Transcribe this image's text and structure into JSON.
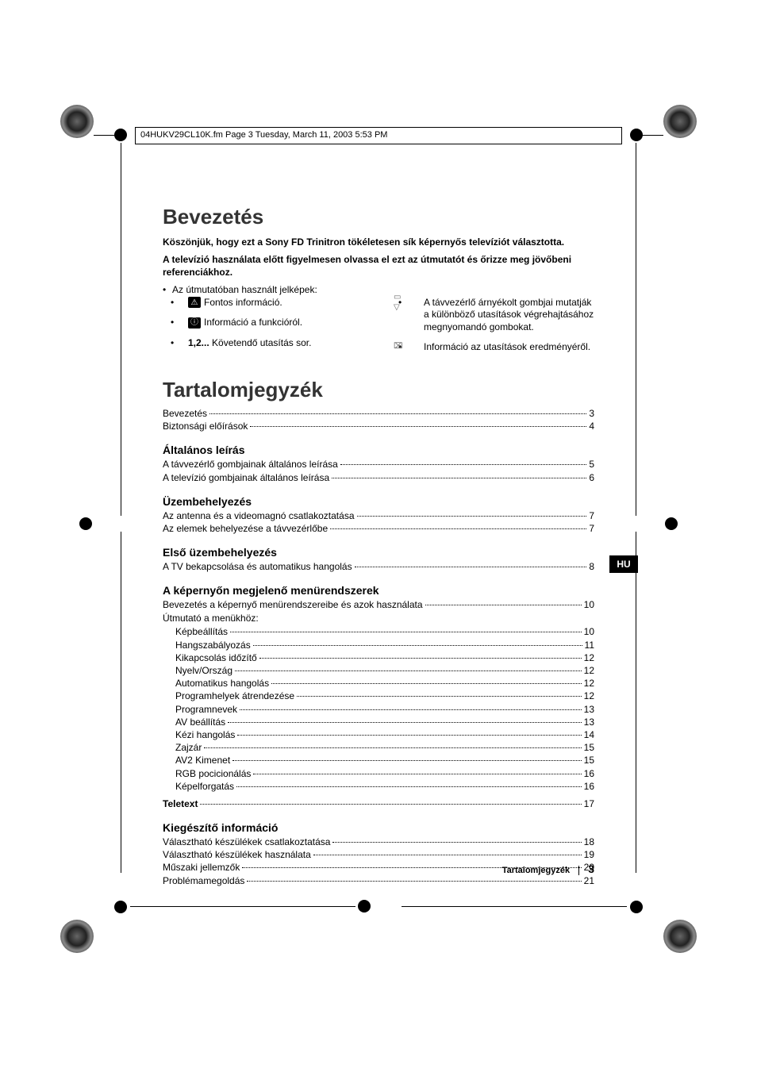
{
  "frameHeader": "04HUKV29CL10K.fm  Page 3  Tuesday, March 11, 2003  5:53 PM",
  "langTab": "HU",
  "intro": {
    "title": "Bevezetés",
    "line1": "Köszönjük, hogy ezt a Sony FD Trinitron tökéletesen sík képernyős televíziót választotta.",
    "line2": "A televízió használata előtt figyelmesen olvassa el ezt az útmutatót és őrizze meg jövőbeni referenciákhoz.",
    "symbols_intro": "Az útmutatóban használt jelképek:",
    "left": [
      {
        "icon": "⚠",
        "text": "Fontos információ."
      },
      {
        "icon": "ⓘ",
        "text": "Információ a funkcióról."
      },
      {
        "icon12": "1,2...",
        "text": "Követendő utasítás sor."
      }
    ],
    "right": [
      {
        "icon": "remote",
        "text": "A távvezérlő árnyékolt gombjai mutatják a különböző utasítások végrehajtásához megnyomandó gombokat."
      },
      {
        "icon": "screen",
        "text": "Információ az utasítások eredményéről."
      }
    ]
  },
  "toc": {
    "title": "Tartalomjegyzék",
    "items": [
      {
        "label": "Bevezetés",
        "page": "3"
      },
      {
        "label": "Biztonsági előírások",
        "page": "4"
      }
    ],
    "s1": {
      "heading": "Általános leírás",
      "items": [
        {
          "label": "A távvezérlő gombjainak általános leírása",
          "page": "5"
        },
        {
          "label": "A televízió gombjainak általános leírása",
          "page": "6"
        }
      ]
    },
    "s2": {
      "heading": "Üzembehelyezés",
      "items": [
        {
          "label": "Az antenna és a videomagnó csatlakoztatása",
          "page": "7"
        },
        {
          "label": "Az elemek behelyezése a távvezérlőbe",
          "page": "7"
        }
      ]
    },
    "s3": {
      "heading": "Első üzembehelyezés",
      "items": [
        {
          "label": "A TV bekapcsolása és automatikus hangolás",
          "page": "8"
        }
      ]
    },
    "s4": {
      "heading": "A képernyőn megjelenő menürendszerek",
      "items": [
        {
          "label": "Bevezetés a képernyő menürendszereibe és azok használata",
          "page": "10"
        }
      ],
      "sub": "Útmutató a menükhöz:",
      "subitems": [
        {
          "label": "Képbeállítás",
          "page": "10"
        },
        {
          "label": "Hangszabályozás",
          "page": "11"
        },
        {
          "label": "Kikapcsolás időzítő",
          "page": "12"
        },
        {
          "label": "Nyelv/Ország",
          "page": "12"
        },
        {
          "label": "Automatikus hangolás",
          "page": "12"
        },
        {
          "label": "Programhelyek átrendezése",
          "page": "12"
        },
        {
          "label": "Programnevek",
          "page": "13"
        },
        {
          "label": "AV beállítás",
          "page": "13"
        },
        {
          "label": "Kézi hangolás",
          "page": "14"
        },
        {
          "label": "Zajzár",
          "page": "15"
        },
        {
          "label": "AV2 Kimenet",
          "page": "15"
        },
        {
          "label": "RGB pocicionálás",
          "page": "16"
        },
        {
          "label": "Képelforgatás",
          "page": "16"
        }
      ]
    },
    "teletext": {
      "label": "Teletext",
      "page": "17"
    },
    "s5": {
      "heading": "Kiegészítő információ",
      "items": [
        {
          "label": "Választható készülékek csatlakoztatása",
          "page": "18"
        },
        {
          "label": "Választható készülékek használata",
          "page": "19"
        },
        {
          "label": "Műszaki jellemzők",
          "page": "20"
        },
        {
          "label": "Problémamegoldás",
          "page": "21"
        }
      ]
    }
  },
  "footer": {
    "title": "Tartalomjegyzék",
    "page": "3"
  }
}
